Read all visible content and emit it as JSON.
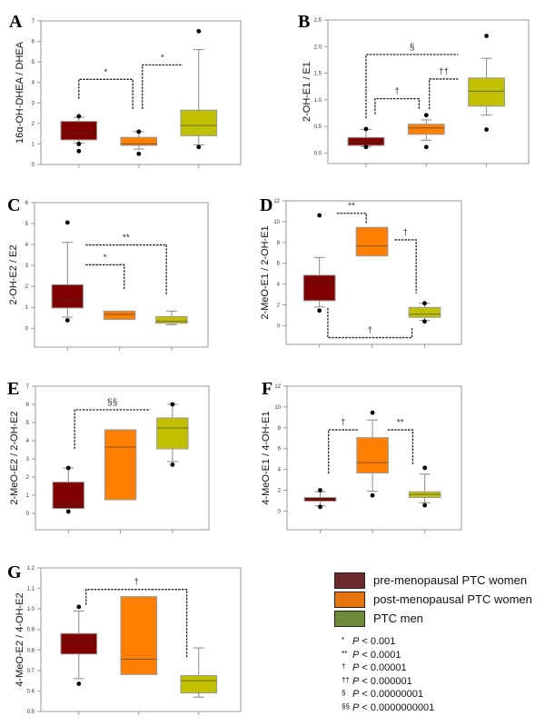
{
  "colors": {
    "pre": "#800000",
    "post": "#ff8000",
    "men": "#c0c000",
    "legend_pre": "#6b2a2c",
    "legend_post": "#e8740f",
    "legend_men": "#6e8c3a"
  },
  "legend": [
    {
      "key": "pre",
      "label": "pre-menopausal PTC women"
    },
    {
      "key": "post",
      "label": "post-menopausal PTC women"
    },
    {
      "key": "men",
      "label": "PTC men"
    }
  ],
  "pvalues": [
    {
      "symbol": "*",
      "p": "P",
      "threshold": " < 0.001"
    },
    {
      "symbol": "**",
      "p": "P",
      "threshold": " < 0.0001"
    },
    {
      "symbol": "†",
      "p": "P",
      "threshold": " < 0.00001"
    },
    {
      "symbol": "††",
      "p": "P",
      "threshold": " < 0.000001"
    },
    {
      "symbol": "§",
      "p": "P",
      "threshold": " < 0.00000001"
    },
    {
      "symbol": "§§",
      "p": "P",
      "threshold": " < 0.0000000001"
    }
  ],
  "chart_data": [
    {
      "panel": "A",
      "type": "box",
      "ylabel": "16α-OH-DHEA / DHEA",
      "ylim": [
        0,
        7
      ],
      "yticks": [
        0,
        1,
        2,
        3,
        4,
        5,
        6,
        7
      ],
      "decimals": 0,
      "groups": [
        {
          "key": "pre",
          "whisker_low": 1.05,
          "q1": 1.2,
          "median": 1.55,
          "q3": 2.1,
          "whisker_high": 2.3,
          "outliers": [
            2.35,
            1.0,
            0.65
          ]
        },
        {
          "key": "post",
          "whisker_low": 0.75,
          "q1": 0.93,
          "median": 1.0,
          "q3": 1.32,
          "whisker_high": 1.6,
          "outliers": [
            1.6,
            0.52
          ]
        },
        {
          "key": "men",
          "whisker_low": 0.95,
          "q1": 1.4,
          "median": 1.9,
          "q3": 2.65,
          "whisker_high": 5.6,
          "outliers": [
            6.5,
            0.85
          ]
        }
      ],
      "brackets": [
        {
          "label": "*",
          "x1": 1.0,
          "y1": 3.2,
          "top": 4.15,
          "x2": 1.9,
          "y2": 2.7
        },
        {
          "label": "*",
          "x1": 2.06,
          "y1": 2.7,
          "top": 4.85,
          "x2": 2.73,
          "y2": null
        }
      ]
    },
    {
      "panel": "B",
      "type": "box",
      "ylabel": "2-OH-E1 / E1",
      "ylim": [
        -0.2,
        2.5
      ],
      "yticks": [
        0,
        0.5,
        1,
        1.5,
        2,
        2.5
      ],
      "decimals": 1,
      "groups": [
        {
          "key": "pre",
          "whisker_low": 0.12,
          "q1": 0.14,
          "median": 0.2,
          "q3": 0.29,
          "whisker_high": 0.44,
          "outliers": [
            0.45,
            0.11
          ]
        },
        {
          "key": "post",
          "whisker_low": 0.24,
          "q1": 0.35,
          "median": 0.47,
          "q3": 0.54,
          "whisker_high": 0.62,
          "outliers": [
            0.71,
            0.11
          ]
        },
        {
          "key": "men",
          "whisker_low": 0.71,
          "q1": 0.88,
          "median": 1.16,
          "q3": 1.41,
          "whisker_high": 1.78,
          "outliers": [
            2.2,
            0.44
          ]
        }
      ],
      "brackets": [
        {
          "label": "§",
          "x1": 1.0,
          "y1": 0.65,
          "top": 1.85,
          "x2": 2.53,
          "y2": null
        },
        {
          "label": "†",
          "x1": 1.15,
          "y1": 0.73,
          "top": 1.02,
          "x2": 1.88,
          "y2": 0.83
        },
        {
          "label": "††",
          "x1": 2.05,
          "y1": 0.82,
          "top": 1.39,
          "x2": 2.53,
          "y2": null
        }
      ]
    },
    {
      "panel": "C",
      "type": "box",
      "ylabel": "2-OH-E2 / E2",
      "ylim": [
        -0.9,
        6
      ],
      "yticks": [
        0,
        1,
        2,
        3,
        4,
        5,
        6
      ],
      "decimals": 0,
      "groups": [
        {
          "key": "pre",
          "whisker_low": 0.53,
          "q1": 0.97,
          "median": 1.35,
          "q3": 2.08,
          "whisker_high": 4.1,
          "outliers": [
            5.05,
            0.38
          ]
        },
        {
          "key": "post",
          "whisker_low": null,
          "q1": 0.42,
          "median": 0.66,
          "q3": 0.82,
          "whisker_high": null,
          "outliers": []
        },
        {
          "key": "men",
          "whisker_low": 0.17,
          "q1": 0.24,
          "median": 0.33,
          "q3": 0.56,
          "whisker_high": 0.82,
          "outliers": []
        }
      ],
      "brackets": [
        {
          "label": "*",
          "x1": 1.35,
          "y1": null,
          "top": 3.03,
          "x2": 2.09,
          "y2": 1.85
        },
        {
          "label": "**",
          "x1": 1.35,
          "y1": null,
          "top": 3.98,
          "x2": 2.9,
          "y2": 1.6
        }
      ]
    },
    {
      "panel": "D",
      "type": "box",
      "ylabel": "2-MeO-E1 / 2-OH-E1",
      "ylim": [
        -1.8,
        12
      ],
      "yticks": [
        0,
        2,
        4,
        6,
        8,
        10,
        12
      ],
      "decimals": 0,
      "groups": [
        {
          "key": "pre",
          "whisker_low": 1.8,
          "q1": 2.4,
          "median": 4.15,
          "q3": 4.85,
          "whisker_high": 6.55,
          "outliers": [
            10.6,
            1.45
          ]
        },
        {
          "key": "post",
          "whisker_low": null,
          "q1": 6.7,
          "median": 7.65,
          "q3": 9.45,
          "whisker_high": null,
          "outliers": []
        },
        {
          "key": "men",
          "whisker_low": 0.5,
          "q1": 0.8,
          "median": 1.1,
          "q3": 1.75,
          "whisker_high": 2.15,
          "outliers": [
            2.15,
            0.4
          ]
        }
      ],
      "brackets": [
        {
          "label": "**",
          "x1": 1.33,
          "y1": null,
          "top": 10.8,
          "x2": 1.89,
          "y2": 9.8
        },
        {
          "label": "†",
          "x1": 2.43,
          "y1": null,
          "top": 8.25,
          "x2": 2.84,
          "y2": 3.1
        },
        {
          "label": "†",
          "x1": 1.16,
          "y1": 1.7,
          "top": -1.15,
          "x2": 2.76,
          "y2": -0.2
        }
      ]
    },
    {
      "panel": "E",
      "type": "box",
      "ylabel": "2-MeO-E2 / 2-OH-E2",
      "ylim": [
        -0.9,
        7
      ],
      "yticks": [
        0,
        1,
        2,
        3,
        4,
        5,
        6,
        7
      ],
      "decimals": 0,
      "groups": [
        {
          "key": "pre",
          "whisker_low": 0.27,
          "q1": 0.27,
          "median": 0.45,
          "q3": 1.72,
          "whisker_high": 2.5,
          "outliers": [
            2.5,
            0.1
          ]
        },
        {
          "key": "post",
          "whisker_low": null,
          "q1": 0.75,
          "median": 3.65,
          "q3": 4.6,
          "whisker_high": null,
          "outliers": []
        },
        {
          "key": "men",
          "whisker_low": 2.85,
          "q1": 3.55,
          "median": 4.7,
          "q3": 5.25,
          "whisker_high": 6.0,
          "outliers": [
            6.0,
            2.68
          ]
        }
      ],
      "brackets": [
        {
          "label": "§§",
          "x1": 1.12,
          "y1": 3.55,
          "top": 5.7,
          "x2": 2.57,
          "y2": null
        }
      ]
    },
    {
      "panel": "F",
      "type": "box",
      "ylabel": "4-MeO-E1 / 4-OH-E1",
      "ylim": [
        -1.8,
        12
      ],
      "yticks": [
        0,
        2,
        4,
        6,
        8,
        10,
        12
      ],
      "decimals": 0,
      "groups": [
        {
          "key": "pre",
          "whisker_low": 0.5,
          "q1": 0.95,
          "median": 1.15,
          "q3": 1.3,
          "whisker_high": 1.85,
          "outliers": [
            2.0,
            0.4
          ]
        },
        {
          "key": "post",
          "whisker_low": 1.9,
          "q1": 3.65,
          "median": 4.65,
          "q3": 7.05,
          "whisker_high": 8.75,
          "outliers": [
            9.45,
            1.5
          ]
        },
        {
          "key": "men",
          "whisker_low": 0.8,
          "q1": 1.3,
          "median": 1.6,
          "q3": 1.85,
          "whisker_high": 3.55,
          "outliers": [
            4.15,
            0.55
          ]
        }
      ],
      "brackets": [
        {
          "label": "†",
          "x1": 1.16,
          "y1": 3.6,
          "top": 7.8,
          "x2": 1.72,
          "y2": null
        },
        {
          "label": "**",
          "x1": 2.29,
          "y1": null,
          "top": 7.8,
          "x2": 2.77,
          "y2": 4.5
        }
      ]
    },
    {
      "panel": "G",
      "type": "box",
      "ylabel": "4-MeO-E2 / 4-OH-E2",
      "ylim": [
        0.5,
        1.2
      ],
      "yticks": [
        0.5,
        0.6,
        0.7,
        0.8,
        0.9,
        1.0,
        1.1,
        1.2
      ],
      "decimals": 1,
      "groups": [
        {
          "key": "pre",
          "whisker_low": 0.66,
          "q1": 0.78,
          "median": 0.84,
          "q3": 0.88,
          "whisker_high": 0.99,
          "outliers": [
            1.01,
            0.635
          ]
        },
        {
          "key": "post",
          "whisker_low": null,
          "q1": 0.68,
          "median": 0.755,
          "q3": 1.06,
          "whisker_high": null,
          "outliers": []
        },
        {
          "key": "men",
          "whisker_low": 0.57,
          "q1": 0.59,
          "median": 0.65,
          "q3": 0.675,
          "whisker_high": 0.81,
          "outliers": []
        }
      ],
      "brackets": [
        {
          "label": "†",
          "x1": 1.12,
          "y1": 1.02,
          "top": 1.095,
          "x2": 2.8,
          "y2": 0.76
        }
      ]
    }
  ]
}
